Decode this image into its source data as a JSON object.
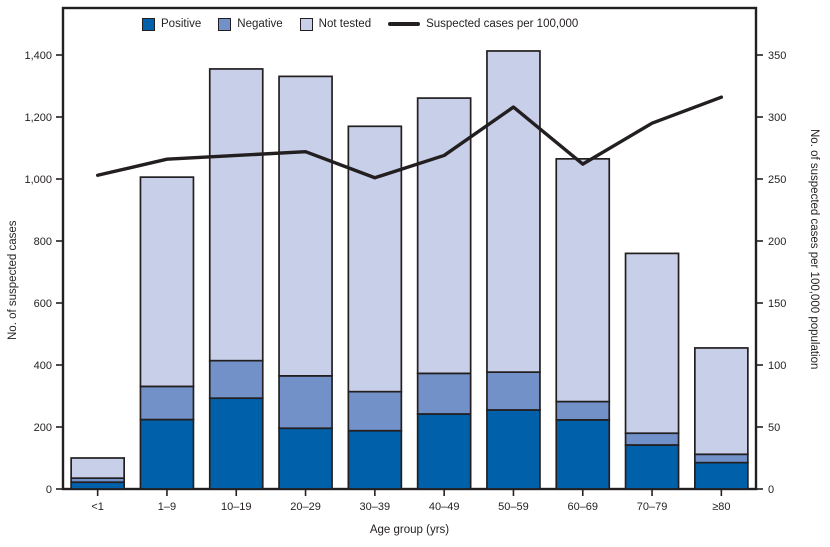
{
  "chart_data": {
    "type": "bar",
    "subtype": "stacked-bars-with-line",
    "title": "",
    "xlabel": "Age group (yrs)",
    "categories": [
      "<1",
      "1–9",
      "10–19",
      "20–29",
      "30–39",
      "40–49",
      "50–59",
      "60–69",
      "70–79",
      "≥80"
    ],
    "series": [
      {
        "name": "Positive",
        "color": "#0060a9",
        "values": [
          22,
          224,
          293,
          196,
          188,
          242,
          255,
          223,
          142,
          85
        ]
      },
      {
        "name": "Negative",
        "color": "#7191c8",
        "values": [
          13,
          107,
          121,
          169,
          126,
          131,
          122,
          59,
          38,
          27
        ]
      },
      {
        "name": "Not tested",
        "color": "#c7d0e8",
        "values": [
          65,
          675,
          941,
          966,
          856,
          888,
          1036,
          783,
          580,
          343
        ]
      }
    ],
    "line_series": {
      "name": "Suspected cases per 100,000",
      "color": "#231f20",
      "axis": "right",
      "values": [
        253,
        266,
        269,
        272,
        251,
        269,
        308,
        262,
        295,
        316
      ]
    },
    "left_axis": {
      "label": "No. of suspected cases",
      "min": 0,
      "max": 1400,
      "ticks": [
        {
          "v": 0,
          "label": "0"
        },
        {
          "v": 200,
          "label": "200"
        },
        {
          "v": 400,
          "label": "400"
        },
        {
          "v": 600,
          "label": "600"
        },
        {
          "v": 800,
          "label": "800"
        },
        {
          "v": 1000,
          "label": "1,000"
        },
        {
          "v": 1200,
          "label": "1,200"
        },
        {
          "v": 1400,
          "label": "1,400"
        }
      ]
    },
    "right_axis": {
      "label": "No. of suspected cases per 100,000 population",
      "min": 0,
      "max": 350,
      "ticks": [
        {
          "v": 0,
          "label": "0"
        },
        {
          "v": 50,
          "label": "50"
        },
        {
          "v": 100,
          "label": "100"
        },
        {
          "v": 150,
          "label": "150"
        },
        {
          "v": 200,
          "label": "200"
        },
        {
          "v": 250,
          "label": "250"
        },
        {
          "v": 300,
          "label": "300"
        },
        {
          "v": 350,
          "label": "350"
        }
      ]
    },
    "grid": "off",
    "legend_position": "top",
    "colors": {
      "ink": "#231f20",
      "background": "#ffffff"
    }
  },
  "legend": {
    "items": [
      {
        "label": "Positive",
        "type": "swatch",
        "color": "#0060a9"
      },
      {
        "label": "Negative",
        "type": "swatch",
        "color": "#7191c8"
      },
      {
        "label": "Not tested",
        "type": "swatch",
        "color": "#c7d0e8"
      },
      {
        "label": "Suspected cases per 100,000",
        "type": "line",
        "color": "#231f20"
      }
    ]
  }
}
